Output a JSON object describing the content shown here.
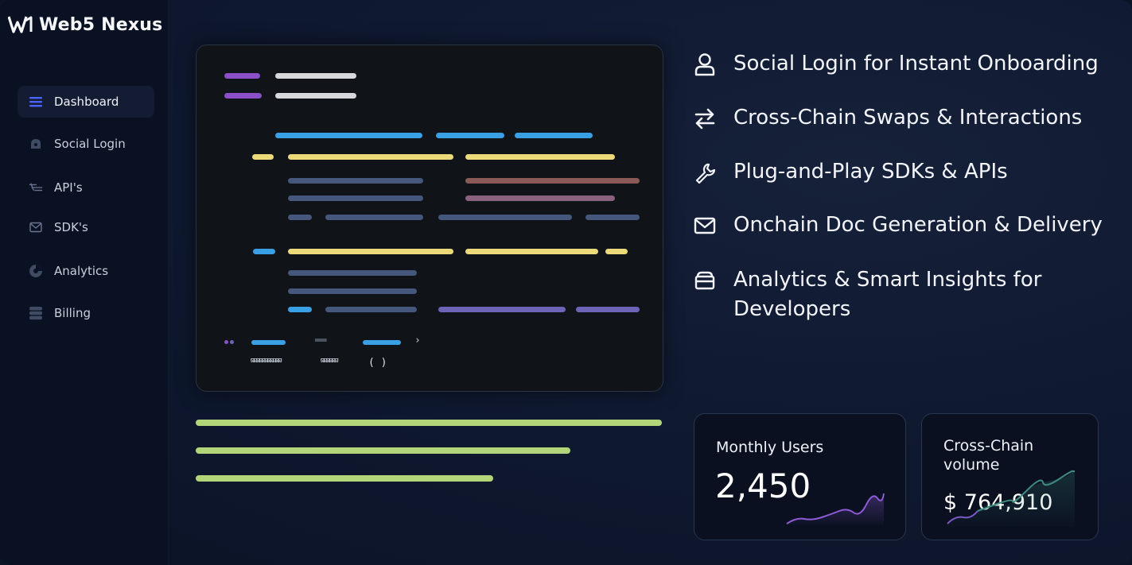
{
  "app": {
    "brand": "Web5 Nexus"
  },
  "sidebar": {
    "items": [
      {
        "label": "Dashboard",
        "icon": "menu-icon",
        "active": true
      },
      {
        "label": "Social Login",
        "icon": "lock-icon",
        "active": false
      },
      {
        "label": "API's",
        "icon": "api-icon",
        "active": false
      },
      {
        "label": "SDK's",
        "icon": "mail-icon",
        "active": false
      },
      {
        "label": "Analytics",
        "icon": "pie-chart-icon",
        "active": false
      },
      {
        "label": "Billing",
        "icon": "database-icon",
        "active": false
      }
    ]
  },
  "code_preview": {
    "glyphs": {
      "bracket": "›",
      "equals": "══",
      "parens": "( )",
      "scribble_a": "ϖϖϖϖϖϖϖϖϖϖϖ",
      "scribble_b": "ϖϖϖϖϖϖ"
    }
  },
  "features": [
    {
      "icon": "user-icon",
      "text": "Social Login for Instant Onboarding"
    },
    {
      "icon": "swap-arrows-icon",
      "text": "Cross-Chain Swaps & Interactions"
    },
    {
      "icon": "wrench-icon",
      "text": "Plug-and-Play SDKs & APIs"
    },
    {
      "icon": "envelope-icon",
      "text": "Onchain Doc Generation & Delivery"
    },
    {
      "icon": "inbox-icon",
      "text": "Analytics & Smart Insights for Developers"
    }
  ],
  "stats": [
    {
      "label": "Monthly Users",
      "value": "2,450",
      "sparkline_color": "#8e5bd6"
    },
    {
      "label": "Cross-Chain volume",
      "value": "$ 764,910",
      "sparkline_color": "#3f8c7e"
    }
  ],
  "colors": {
    "purple": "#8b4fc7",
    "white": "#d6d8dc",
    "blue": "#3aa0e6",
    "yellow": "#ecd97a",
    "slate": "#46577c",
    "brown": "#8a5a58",
    "mauve": "#8a6280",
    "violet": "#6d64b8",
    "green": "#b3d57a"
  }
}
